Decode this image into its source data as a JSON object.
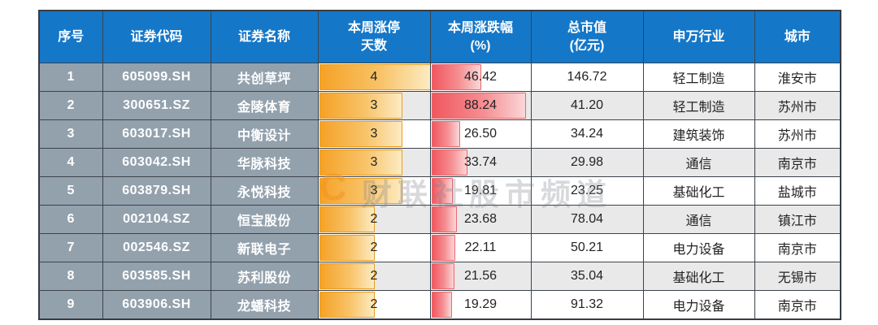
{
  "chart_data": {
    "type": "table",
    "title": "",
    "columns": [
      "序号",
      "证券代码",
      "证券名称",
      "本周涨停天数",
      "本周涨跌幅(%)",
      "总市值(亿元)",
      "申万行业",
      "城市"
    ],
    "rows": [
      [
        1,
        "605099.SH",
        "共创草坪",
        4,
        46.42,
        146.72,
        "轻工制造",
        "淮安市"
      ],
      [
        2,
        "300651.SZ",
        "金陵体育",
        3,
        88.24,
        41.2,
        "轻工制造",
        "苏州市"
      ],
      [
        3,
        "603017.SH",
        "中衡设计",
        3,
        26.5,
        34.24,
        "建筑装饰",
        "苏州市"
      ],
      [
        4,
        "603042.SH",
        "华脉科技",
        3,
        33.74,
        29.98,
        "通信",
        "南京市"
      ],
      [
        5,
        "603879.SH",
        "永悦科技",
        3,
        19.81,
        23.25,
        "基础化工",
        "盐城市"
      ],
      [
        6,
        "002104.SZ",
        "恒宝股份",
        2,
        23.68,
        78.04,
        "通信",
        "镇江市"
      ],
      [
        7,
        "002546.SZ",
        "新联电子",
        2,
        22.11,
        50.21,
        "电力设备",
        "南京市"
      ],
      [
        8,
        "603585.SH",
        "苏利股份",
        2,
        21.56,
        35.04,
        "基础化工",
        "无锡市"
      ],
      [
        9,
        "603906.SH",
        "龙蟠科技",
        2,
        19.29,
        91.32,
        "电力设备",
        "南京市"
      ]
    ],
    "layout_hints": {
      "days_bar_scale_max": 4,
      "change_bar_scale_max": 88.24,
      "change_bar_max_fill_pct": 95,
      "row_striping": "even rows light gray"
    }
  },
  "header": {
    "cells": [
      {
        "line1": "序号",
        "line2": ""
      },
      {
        "line1": "证券代码",
        "line2": ""
      },
      {
        "line1": "证券名称",
        "line2": ""
      },
      {
        "line1": "本周涨停",
        "line2": "天数"
      },
      {
        "line1": "本周涨跌幅",
        "line2": "(%)"
      },
      {
        "line1": "总市值",
        "line2": "(亿元)"
      },
      {
        "line1": "申万行业",
        "line2": ""
      },
      {
        "line1": "城市",
        "line2": ""
      }
    ]
  },
  "watermark": {
    "logo_letter": "C",
    "text": "财联社股市频道"
  },
  "colors": {
    "header_bg": "#1577C8",
    "header_text": "#FFFFFF",
    "meta_cell_bg": "#93A1AD",
    "meta_cell_text": "#FFFFFF",
    "row_even_bg": "#E9E9E9",
    "row_odd_bg": "#FFFFFF",
    "border": "#3C434B",
    "days_bar_start": "#F5A227",
    "days_bar_end": "#FCEBC2",
    "change_bar_start": "#F1575F",
    "change_bar_end": "#FBD6D7",
    "watermark_logo": "#F29423",
    "value_text": "#232323"
  }
}
